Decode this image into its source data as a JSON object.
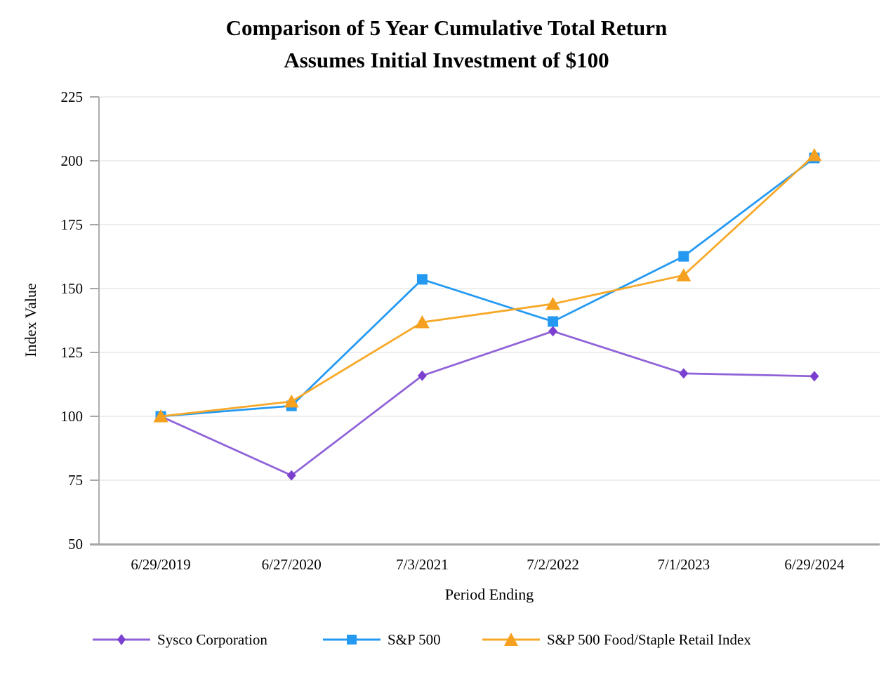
{
  "chart_data": {
    "type": "line",
    "title_line1": "Comparison of 5 Year Cumulative Total Return",
    "title_line2": "Assumes Initial Investment of $100",
    "xlabel": "Period Ending",
    "ylabel": "Index Value",
    "categories": [
      "6/29/2019",
      "6/27/2020",
      "7/3/2021",
      "7/2/2022",
      "7/1/2023",
      "6/29/2024"
    ],
    "y_ticks": [
      50,
      75,
      100,
      125,
      150,
      175,
      200,
      225
    ],
    "ylim": [
      50,
      225
    ],
    "grid": "horizontal",
    "legend_position": "bottom",
    "axis_color": "#a6a6a6",
    "grid_color": "#e9e9e9",
    "series": [
      {
        "name": "Sysco Corporation",
        "marker": "diamond",
        "color": "#8f62d8",
        "marker_color": "#7c40d0",
        "values": [
          100,
          76.9,
          115.9,
          133.3,
          116.8,
          115.7
        ]
      },
      {
        "name": "S&P 500",
        "marker": "square",
        "color": "#2499f2",
        "marker_color": "#2499f2",
        "values": [
          100,
          104.1,
          153.6,
          137.1,
          162.6,
          201.1
        ]
      },
      {
        "name": "S&P 500 Food/Staple Retail Index",
        "marker": "triangle",
        "color": "#f7a827",
        "marker_color": "#f5a11f",
        "values": [
          100,
          105.8,
          136.8,
          144.0,
          155.2,
          202.2
        ]
      }
    ]
  }
}
